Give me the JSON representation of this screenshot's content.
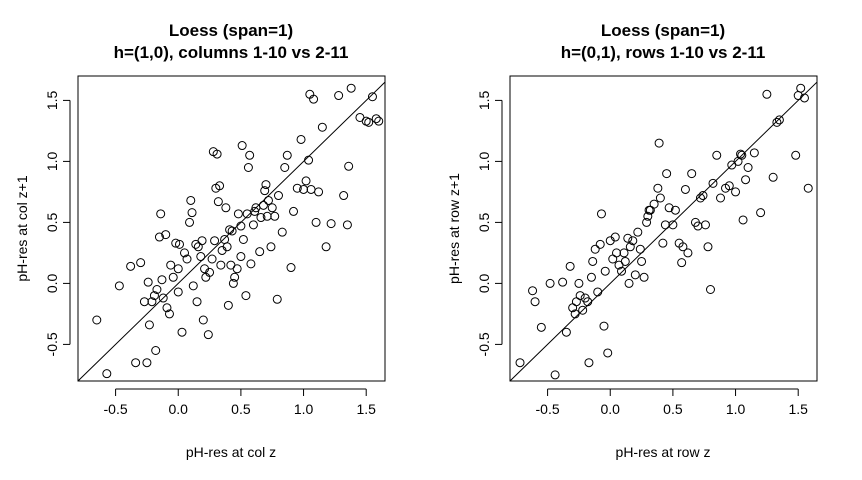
{
  "chart_data": [
    {
      "type": "scatter",
      "title": "Loess (span=1)",
      "subtitle": "h=(1,0), columns 1-10 vs 2-11",
      "xlabel": "pH-res at col z",
      "ylabel": "pH-res at col z+1",
      "xlim": [
        -0.8,
        1.65
      ],
      "ylim": [
        -0.8,
        1.7
      ],
      "xticks": [
        "-0.5",
        "0.0",
        "0.5",
        "1.0",
        "1.5"
      ],
      "yticks": [
        "-0.5",
        "0.0",
        "0.5",
        "1.0",
        "1.5"
      ],
      "reference_line": "y = x",
      "grid": false,
      "x": [
        -0.65,
        -0.57,
        -0.47,
        -0.38,
        -0.34,
        -0.3,
        -0.27,
        -0.25,
        -0.24,
        -0.23,
        -0.21,
        -0.19,
        -0.18,
        -0.17,
        -0.15,
        -0.14,
        -0.13,
        -0.12,
        -0.1,
        -0.09,
        -0.07,
        -0.06,
        -0.04,
        -0.02,
        0.0,
        0.0,
        0.01,
        0.03,
        0.05,
        0.07,
        0.09,
        0.1,
        0.11,
        0.12,
        0.14,
        0.15,
        0.16,
        0.18,
        0.19,
        0.2,
        0.21,
        0.22,
        0.24,
        0.25,
        0.27,
        0.28,
        0.29,
        0.3,
        0.31,
        0.32,
        0.33,
        0.34,
        0.35,
        0.37,
        0.38,
        0.39,
        0.4,
        0.41,
        0.42,
        0.43,
        0.44,
        0.45,
        0.47,
        0.48,
        0.5,
        0.5,
        0.51,
        0.52,
        0.54,
        0.55,
        0.56,
        0.57,
        0.58,
        0.6,
        0.61,
        0.62,
        0.65,
        0.66,
        0.68,
        0.69,
        0.7,
        0.71,
        0.72,
        0.74,
        0.75,
        0.77,
        0.79,
        0.8,
        0.83,
        0.85,
        0.87,
        0.9,
        0.92,
        0.95,
        0.98,
        1.0,
        1.02,
        1.04,
        1.05,
        1.06,
        1.08,
        1.1,
        1.12,
        1.15,
        1.18,
        1.22,
        1.28,
        1.32,
        1.35,
        1.36,
        1.38,
        1.45,
        1.5,
        1.52,
        1.55,
        1.58,
        1.6
      ],
      "y": [
        -0.3,
        -0.74,
        -0.02,
        0.14,
        -0.65,
        0.17,
        -0.15,
        -0.65,
        0.01,
        -0.34,
        -0.15,
        -0.1,
        -0.55,
        -0.05,
        0.38,
        0.57,
        0.03,
        -0.12,
        0.4,
        -0.2,
        -0.25,
        0.15,
        0.05,
        0.33,
        -0.07,
        0.12,
        0.32,
        -0.4,
        0.25,
        0.2,
        0.5,
        0.68,
        0.58,
        -0.02,
        0.32,
        -0.15,
        0.3,
        0.22,
        0.35,
        -0.3,
        0.12,
        0.05,
        -0.42,
        0.09,
        0.2,
        1.08,
        0.35,
        0.78,
        1.06,
        0.67,
        0.8,
        0.15,
        0.27,
        0.36,
        0.62,
        0.3,
        -0.18,
        0.44,
        0.15,
        0.43,
        0.0,
        0.05,
        0.12,
        0.57,
        0.47,
        0.22,
        1.13,
        0.36,
        -0.1,
        0.57,
        0.95,
        1.05,
        0.16,
        0.48,
        0.59,
        0.62,
        0.26,
        0.54,
        0.64,
        0.76,
        0.81,
        0.55,
        0.68,
        0.3,
        0.62,
        0.55,
        -0.13,
        0.72,
        0.42,
        0.95,
        1.05,
        0.13,
        0.59,
        0.78,
        1.18,
        0.77,
        0.84,
        1.01,
        1.55,
        0.77,
        1.51,
        0.5,
        0.75,
        1.28,
        0.3,
        0.49,
        1.54,
        0.72,
        0.48,
        0.96,
        1.6,
        1.36,
        1.33,
        1.32,
        1.53,
        1.35,
        1.33
      ]
    },
    {
      "type": "scatter",
      "title": "Loess (span=1)",
      "subtitle": "h=(0,1), rows 1-10 vs 2-11",
      "xlabel": "pH-res at row z",
      "ylabel": "pH-res at row z+1",
      "xlim": [
        -0.8,
        1.65
      ],
      "ylim": [
        -0.8,
        1.7
      ],
      "xticks": [
        "-0.5",
        "0.0",
        "0.5",
        "1.0",
        "1.5"
      ],
      "yticks": [
        "-0.5",
        "0.0",
        "0.5",
        "1.0",
        "1.5"
      ],
      "reference_line": "y = x",
      "grid": false,
      "x": [
        -0.72,
        -0.62,
        -0.6,
        -0.55,
        -0.48,
        -0.44,
        -0.38,
        -0.35,
        -0.32,
        -0.3,
        -0.28,
        -0.27,
        -0.25,
        -0.24,
        -0.22,
        -0.2,
        -0.18,
        -0.17,
        -0.15,
        -0.14,
        -0.12,
        -0.1,
        -0.08,
        -0.07,
        -0.05,
        -0.04,
        -0.02,
        0.0,
        0.02,
        0.04,
        0.05,
        0.07,
        0.09,
        0.11,
        0.12,
        0.14,
        0.15,
        0.16,
        0.18,
        0.2,
        0.22,
        0.24,
        0.25,
        0.27,
        0.29,
        0.3,
        0.31,
        0.32,
        0.35,
        0.38,
        0.39,
        0.4,
        0.42,
        0.44,
        0.45,
        0.47,
        0.5,
        0.52,
        0.55,
        0.57,
        0.58,
        0.6,
        0.62,
        0.65,
        0.68,
        0.7,
        0.72,
        0.74,
        0.76,
        0.78,
        0.8,
        0.82,
        0.85,
        0.88,
        0.92,
        0.95,
        0.97,
        1.0,
        1.02,
        1.04,
        1.05,
        1.06,
        1.08,
        1.1,
        1.15,
        1.2,
        1.25,
        1.3,
        1.33,
        1.35,
        1.48,
        1.5,
        1.52,
        1.55,
        1.58
      ],
      "y": [
        -0.65,
        -0.06,
        -0.15,
        -0.36,
        0.0,
        -0.75,
        0.01,
        -0.4,
        0.14,
        -0.2,
        -0.25,
        -0.15,
        0.0,
        -0.1,
        -0.22,
        -0.12,
        -0.15,
        -0.65,
        0.05,
        0.18,
        0.28,
        -0.07,
        0.32,
        0.57,
        -0.35,
        0.1,
        -0.57,
        0.35,
        0.2,
        0.38,
        0.25,
        0.15,
        0.1,
        0.25,
        0.18,
        0.37,
        0.0,
        0.3,
        0.35,
        0.07,
        0.42,
        0.28,
        0.18,
        0.05,
        0.5,
        0.55,
        0.6,
        0.6,
        0.65,
        0.78,
        1.15,
        0.7,
        0.33,
        0.48,
        0.9,
        0.62,
        0.48,
        0.6,
        0.33,
        0.17,
        0.3,
        0.77,
        0.25,
        0.9,
        0.5,
        0.47,
        0.7,
        0.72,
        0.48,
        0.3,
        -0.05,
        0.82,
        1.05,
        0.7,
        0.78,
        0.8,
        0.97,
        0.75,
        1.0,
        1.06,
        1.05,
        0.52,
        0.85,
        0.95,
        1.07,
        0.58,
        1.55,
        0.87,
        1.32,
        1.34,
        1.05,
        1.54,
        1.6,
        1.52,
        0.78
      ]
    }
  ]
}
